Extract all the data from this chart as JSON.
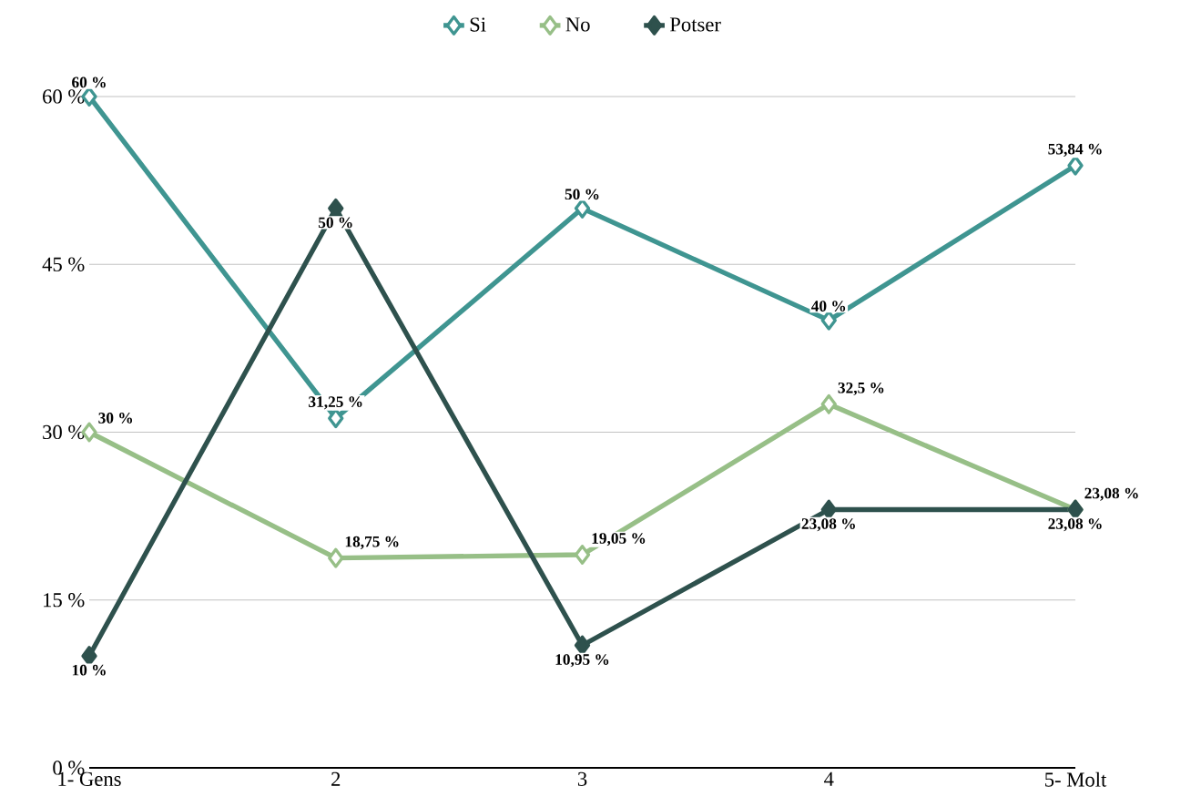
{
  "chart_data": {
    "type": "line",
    "categories": [
      "1- Gens",
      "2",
      "3",
      "4",
      "5- Molt"
    ],
    "series": [
      {
        "name": "Si",
        "color": "#3f9591",
        "values": [
          60,
          31.25,
          50,
          40,
          53.84
        ],
        "value_labels": [
          "60 %",
          "31,25 %",
          "50 %",
          "40 %",
          "53,84 %"
        ]
      },
      {
        "name": "No",
        "color": "#97bf87",
        "values": [
          30,
          18.75,
          19.05,
          32.5,
          23.08
        ],
        "value_labels": [
          "30 %",
          "18,75 %",
          "19,05 %",
          "32,5 %",
          "23,08 %"
        ]
      },
      {
        "name": "Potser",
        "color": "#2e514d",
        "values": [
          10,
          50,
          10.95,
          23.08,
          23.08
        ],
        "value_labels": [
          "10 %",
          "50 %",
          "10,95 %",
          "23,08 %",
          "23,08 %"
        ]
      }
    ],
    "ylim": [
      0,
      60
    ],
    "yticks": [
      {
        "value": 0,
        "label": "0 %"
      },
      {
        "value": 15,
        "label": "15 %"
      },
      {
        "value": 30,
        "label": "30 %"
      },
      {
        "value": 45,
        "label": "45 %"
      },
      {
        "value": 60,
        "label": "60 %"
      }
    ],
    "grid": "y",
    "legend": "top",
    "marker": "diamond",
    "line_style": "solid"
  }
}
